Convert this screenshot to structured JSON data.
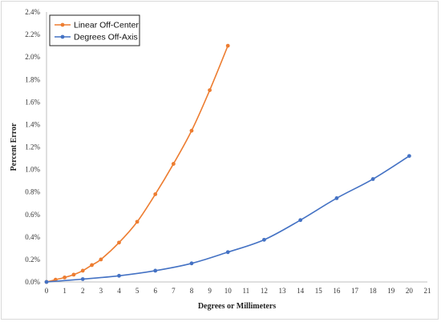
{
  "chart_data": {
    "type": "line",
    "xlabel": "Degrees or Millimeters",
    "ylabel": "Percent Error",
    "xlim": [
      0,
      21
    ],
    "ylim": [
      0,
      2.4
    ],
    "x_ticks": [
      "0",
      "1",
      "2",
      "3",
      "4",
      "5",
      "6",
      "7",
      "8",
      "9",
      "10",
      "11",
      "12",
      "13",
      "14",
      "15",
      "16",
      "17",
      "18",
      "19",
      "20",
      "21"
    ],
    "y_ticks": [
      "0.0%",
      "0.2%",
      "0.4%",
      "0.6%",
      "0.8%",
      "1.0%",
      "1.2%",
      "1.4%",
      "1.6%",
      "1.8%",
      "2.0%",
      "2.2%",
      "2.4%"
    ],
    "grid": false,
    "legend_position": "top-left",
    "series": [
      {
        "name": "Linear Off-Center",
        "color": "#ed7d31",
        "x": [
          0,
          0.5,
          1,
          1.5,
          2,
          2.5,
          3,
          4,
          5,
          6,
          7,
          8,
          9,
          10
        ],
        "y": [
          0.0,
          0.02,
          0.04,
          0.065,
          0.1,
          0.15,
          0.2,
          0.35,
          0.535,
          0.78,
          1.05,
          1.345,
          1.705,
          2.1
        ]
      },
      {
        "name": "Degrees Off-Axis",
        "color": "#4472c4",
        "x": [
          0,
          2,
          4,
          6,
          8,
          10,
          12,
          14,
          16,
          18,
          20
        ],
        "y": [
          0.0,
          0.025,
          0.055,
          0.1,
          0.165,
          0.265,
          0.375,
          0.55,
          0.745,
          0.915,
          1.12
        ]
      }
    ]
  }
}
